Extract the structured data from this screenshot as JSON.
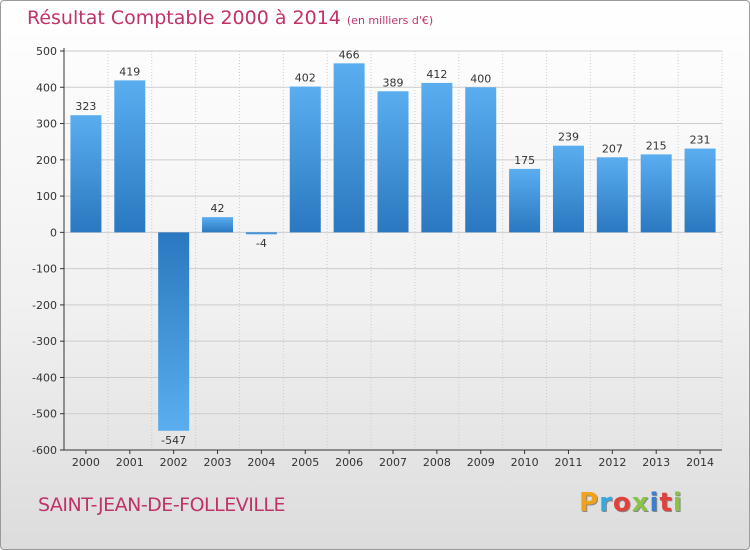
{
  "header": {
    "title": "Résultat Comptable 2000 à 2014",
    "subtitle": "(en milliers d'€)"
  },
  "footer": {
    "commune": "SAINT-JEAN-DE-FOLLEVILLE",
    "brand": "Proxiti",
    "brand_letters": [
      "P",
      "r",
      "o",
      "x",
      "i",
      "t",
      "i"
    ]
  },
  "colors": {
    "title": "#c0326a",
    "bar_light": "#5aaef0",
    "bar_dark": "#2a78c0",
    "grid": "#cccccc",
    "axis": "#333333"
  },
  "chart_data": {
    "type": "bar",
    "title": "Résultat Comptable 2000 à 2014",
    "subtitle": "(en milliers d'€)",
    "xlabel": "",
    "ylabel": "",
    "categories": [
      "2000",
      "2001",
      "2002",
      "2003",
      "2004",
      "2005",
      "2006",
      "2007",
      "2008",
      "2009",
      "2010",
      "2011",
      "2012",
      "2013",
      "2014"
    ],
    "values": [
      323,
      419,
      -547,
      42,
      -4,
      402,
      466,
      389,
      412,
      400,
      175,
      239,
      207,
      215,
      231
    ],
    "data_labels": [
      "323",
      "419",
      "-547",
      "42",
      "-4",
      "402",
      "466",
      "389",
      "412",
      "400",
      "175",
      "239",
      "207",
      "215",
      "231"
    ],
    "ylim": [
      -600,
      500
    ],
    "yticks": [
      500,
      400,
      300,
      200,
      100,
      0,
      -100,
      -200,
      -300,
      -400,
      -500,
      -600
    ],
    "ytick_labels": [
      "500",
      "400",
      "300",
      "200",
      "100",
      "0",
      "-100",
      "-200",
      "-300",
      "-400",
      "-500",
      "-600"
    ],
    "grid": true
  }
}
